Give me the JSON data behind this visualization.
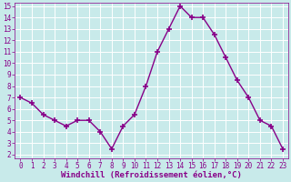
{
  "x": [
    0,
    1,
    2,
    3,
    4,
    5,
    6,
    7,
    8,
    9,
    10,
    11,
    12,
    13,
    14,
    15,
    16,
    17,
    18,
    19,
    20,
    21,
    22,
    23
  ],
  "y": [
    7.0,
    6.5,
    5.5,
    5.0,
    4.5,
    5.0,
    5.0,
    4.0,
    2.5,
    4.5,
    5.5,
    8.0,
    11.0,
    13.0,
    15.0,
    14.0,
    14.0,
    12.5,
    10.5,
    8.5,
    7.0,
    5.0,
    4.5,
    2.5
  ],
  "line_color": "#880088",
  "marker": "+",
  "marker_size": 4,
  "marker_lw": 1.2,
  "line_width": 1.0,
  "bg_color": "#c8eaea",
  "grid_color": "#b0d0d0",
  "xlabel": "Windchill (Refroidissement éolien,°C)",
  "xlabel_color": "#880088",
  "tick_color": "#880088",
  "ylim_min": 2,
  "ylim_max": 15,
  "xlim_min": 0,
  "xlim_max": 23,
  "yticks": [
    2,
    3,
    4,
    5,
    6,
    7,
    8,
    9,
    10,
    11,
    12,
    13,
    14,
    15
  ],
  "xticks": [
    0,
    1,
    2,
    3,
    4,
    5,
    6,
    7,
    8,
    9,
    10,
    11,
    12,
    13,
    14,
    15,
    16,
    17,
    18,
    19,
    20,
    21,
    22,
    23
  ],
  "tick_fontsize": 5.5,
  "xlabel_fontsize": 6.5
}
